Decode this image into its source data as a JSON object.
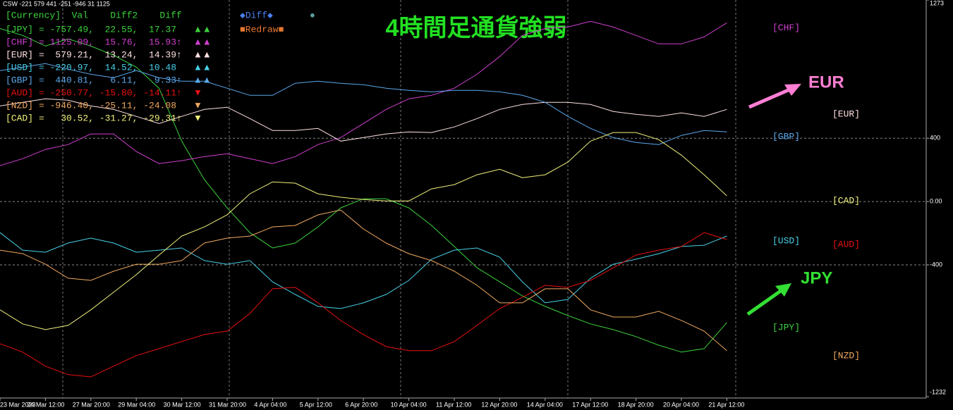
{
  "chart_data": {
    "type": "line",
    "title": "4時間足通貨強弱",
    "header_info": "CSW -221 579 441 -251 -946 31 1125",
    "legend_header": "[Currency]  Val    Diff2    Diff",
    "buttons": {
      "diff": "◆Diff◆",
      "dot": "●",
      "redraw": "■Redraw■"
    },
    "annotations": [
      {
        "text": "EUR",
        "color": "#ff7fd4"
      },
      {
        "text": "JPY",
        "color": "#33e033"
      }
    ],
    "categories": [
      "23 Mar 2023",
      null,
      "24 Mar 12:00",
      null,
      "27 Mar 20:00",
      null,
      "29 Mar 04:00",
      null,
      "30 Mar 12:00",
      null,
      "31 Mar 20:00",
      null,
      "4 Apr 04:00",
      null,
      "5 Apr 12:00",
      null,
      "6 Apr 20:00",
      null,
      "10 Apr 04:00",
      null,
      "11 Apr 12:00",
      null,
      "12 Apr 20:00",
      null,
      "14 Apr 04:00",
      null,
      "17 Apr 12:00",
      null,
      "18 Apr 20:00",
      null,
      "20 Apr 04:00",
      null,
      "21 Apr 12:00"
    ],
    "ylim": [
      -1232,
      1273
    ],
    "yticks": [
      1273,
      400,
      {
        "value": 0,
        "label": "0.00"
      },
      -400,
      -1232
    ],
    "grid": true,
    "series": [
      {
        "name": "[JPY]",
        "color": "#3cd23c",
        "readout": "= -757.49,  22.55,  17.37",
        "marker": "▲▲",
        "values": [
          1093,
          1049,
          982,
          1027,
          982,
          924,
          849,
          716,
          382,
          138,
          -40,
          -196,
          -293,
          -262,
          -160,
          -40,
          18,
          18,
          -40,
          -151,
          -284,
          -418,
          -507,
          -596,
          -662,
          -720,
          -773,
          -809,
          -853,
          -907,
          -951,
          -929,
          -764
        ]
      },
      {
        "name": "[CHF]",
        "color": "#d040d0",
        "readout": "= 1125.09,  15.76,  15.93↑",
        "marker": "▲▲",
        "values": [
          227,
          271,
          329,
          360,
          427,
          427,
          316,
          240,
          258,
          284,
          302,
          271,
          240,
          284,
          360,
          404,
          493,
          582,
          649,
          671,
          716,
          804,
          916,
          1049,
          1093,
          1102,
          1138,
          1102,
          1049,
          996,
          996,
          1040,
          1129
        ]
      },
      {
        "name": "[EUR]",
        "color": "#ffe0e0",
        "readout": "=  579.21,  13.24,  14.39↑",
        "marker": "▲▲",
        "values": [
          604,
          627,
          649,
          640,
          604,
          582,
          538,
          493,
          538,
          582,
          596,
          524,
          449,
          449,
          462,
          382,
          404,
          427,
          440,
          436,
          471,
          524,
          582,
          613,
          627,
          627,
          613,
          569,
          551,
          538,
          560,
          538,
          582
        ]
      },
      {
        "name": "[USD]",
        "color": "#48d0e8",
        "readout": "= -220.97,  14.52,  10.48",
        "marker": "▲▲",
        "values": [
          -196,
          -307,
          -320,
          -262,
          -231,
          -262,
          -320,
          -307,
          -293,
          -373,
          -396,
          -373,
          -507,
          -587,
          -662,
          -676,
          -640,
          -587,
          -498,
          -364,
          -307,
          -293,
          -351,
          -507,
          -640,
          -618,
          -484,
          -396,
          -364,
          -329,
          -284,
          -276,
          -218
        ]
      },
      {
        "name": "[GBP]",
        "color": "#5aa8ec",
        "readout": "=  440.81,   6.11,   9.33↑",
        "marker": "▲▲",
        "values": [
          827,
          849,
          871,
          836,
          804,
          782,
          827,
          782,
          760,
          760,
          716,
          671,
          671,
          747,
          760,
          747,
          738,
          716,
          702,
          693,
          702,
          702,
          693,
          671,
          627,
          538,
          462,
          404,
          373,
          360,
          418,
          449,
          440
        ]
      },
      {
        "name": "[AUD]",
        "color": "#e81010",
        "readout": "= -250.77, -15.80, -14.11↑",
        "marker": "▼",
        "values": [
          -898,
          -951,
          -1040,
          -1093,
          -1107,
          -1040,
          -973,
          -929,
          -884,
          -840,
          -818,
          -707,
          -551,
          -542,
          -640,
          -751,
          -840,
          -916,
          -942,
          -942,
          -884,
          -782,
          -676,
          -604,
          -529,
          -542,
          -498,
          -418,
          -338,
          -307,
          -284,
          -196,
          -240
        ]
      },
      {
        "name": "[NZD]",
        "color": "#f0a860",
        "readout": "= -946.40, -25.11, -24.08",
        "marker": "▼",
        "values": [
          -307,
          -329,
          -396,
          -484,
          -498,
          -440,
          -396,
          -396,
          -373,
          -262,
          -231,
          -218,
          -160,
          -151,
          -84,
          -53,
          -173,
          -262,
          -329,
          -373,
          -440,
          -529,
          -640,
          -640,
          -551,
          -551,
          -684,
          -729,
          -729,
          -693,
          -751,
          -818,
          -942
        ]
      },
      {
        "name": "[CAD]",
        "color": "#f0f07a",
        "readout": "=   30.52, -31.27, -29.31↑",
        "marker": "▼",
        "values": [
          -684,
          -773,
          -809,
          -782,
          -684,
          -573,
          -462,
          -338,
          -218,
          -160,
          -84,
          49,
          124,
          116,
          49,
          27,
          13,
          4,
          4,
          80,
          107,
          169,
          204,
          151,
          169,
          249,
          382,
          436,
          436,
          391,
          293,
          169,
          36
        ]
      }
    ]
  }
}
